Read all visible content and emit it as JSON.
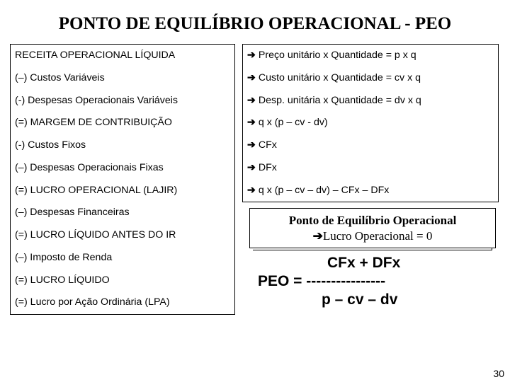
{
  "title": "PONTO DE EQUILÍBRIO OPERACIONAL - PEO",
  "left_rows": [
    "RECEITA OPERACIONAL LÍQUIDA",
    "(–) Custos Variáveis",
    "(-) Despesas Operacionais Variáveis",
    "(=) MARGEM DE CONTRIBUIÇÃO",
    "(-) Custos Fixos",
    "(–) Despesas Operacionais Fixas",
    "(=) LUCRO OPERACIONAL (LAJIR)",
    "(–) Despesas Financeiras",
    "(=) LUCRO LÍQUIDO ANTES DO IR",
    "(–) Imposto de Renda",
    "(=) LUCRO LÍQUIDO",
    "(=) Lucro por Ação Ordinária (LPA)"
  ],
  "right_rows": [
    "Preço unitário x Quantidade = p x q",
    "Custo unitário x Quantidade = cv x q",
    "Desp. unitária x Quantidade = dv x q",
    "q x (p – cv - dv)",
    "CFx",
    "DFx",
    "q x (p – cv – dv) – CFx – DFx"
  ],
  "peo_box": {
    "line1": "Ponto de Equilíbrio Operacional",
    "line2": "Lucro Operacional = 0",
    "arrow": "➔"
  },
  "formula": {
    "top": "CFx + DFx",
    "mid": "PEO = ----------------",
    "bot": "p – cv – dv"
  },
  "page_number": "30",
  "arrow_glyph": "➔"
}
